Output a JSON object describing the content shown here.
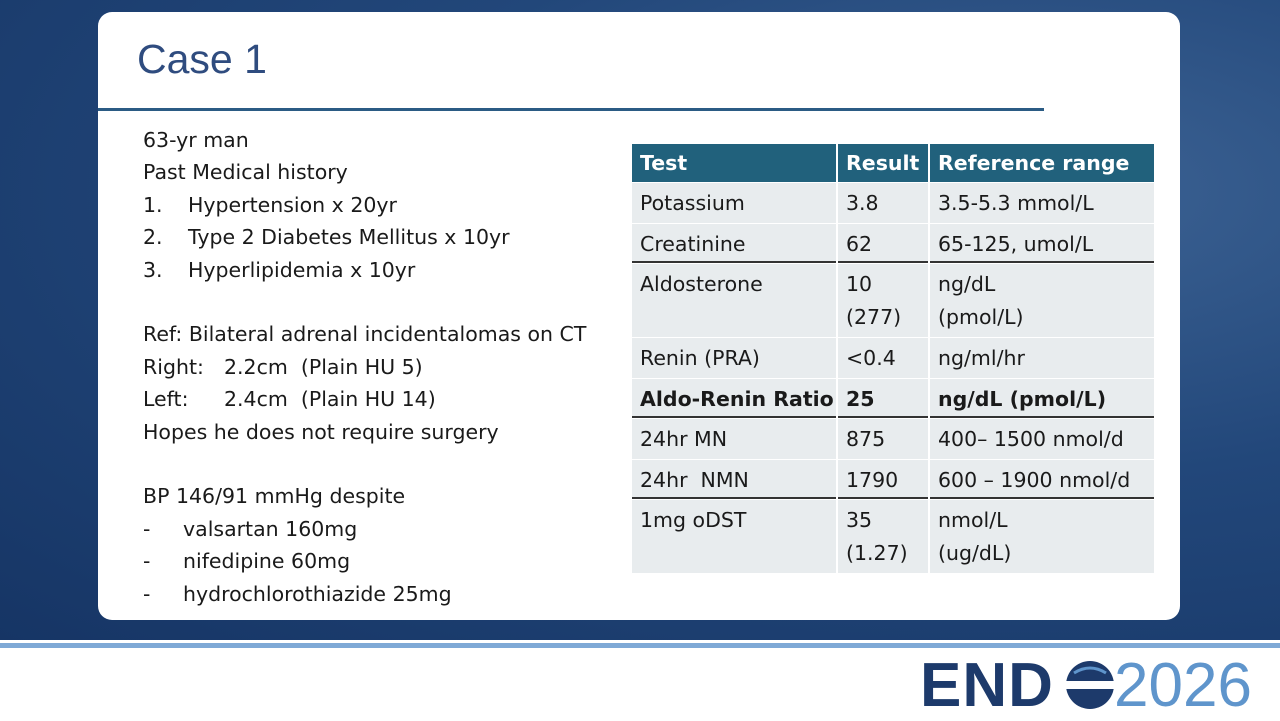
{
  "title": "Case 1",
  "patient": {
    "intro": [
      "63-yr man",
      "Past Medical history"
    ],
    "history": [
      {
        "marker": "1.",
        "text": "Hypertension x 20yr"
      },
      {
        "marker": "2.",
        "text": "Type 2 Diabetes Mellitus x 10yr"
      },
      {
        "marker": "3.",
        "text": "Hyperlipidemia x 10yr"
      }
    ],
    "referral": "Ref: Bilateral adrenal incidentalomas on CT",
    "lesions": [
      {
        "side": "Right:",
        "text": "2.2cm  (Plain HU 5)"
      },
      {
        "side": "Left:",
        "text": "2.4cm  (Plain HU 14)"
      }
    ],
    "note": "Hopes he does not require surgery",
    "bp": "BP 146/91 mmHg despite",
    "meds": [
      {
        "marker": "-",
        "text": "valsartan 160mg"
      },
      {
        "marker": "-",
        "text": "nifedipine 60mg"
      },
      {
        "marker": "-",
        "text": "hydrochlorothiazide 25mg"
      }
    ]
  },
  "table": {
    "header": [
      "Test",
      "Result",
      "Reference range"
    ],
    "rows": [
      {
        "cells": [
          [
            "Potassium"
          ],
          [
            "3.8"
          ],
          [
            "3.5-5.3 mmol/L"
          ]
        ]
      },
      {
        "cells": [
          [
            "Creatinine"
          ],
          [
            "62"
          ],
          [
            "65-125, umol/L"
          ]
        ]
      },
      {
        "cells": [
          [
            "Aldosterone"
          ],
          [
            "10",
            "(277)"
          ],
          [
            "ng/dL",
            "(pmol/L)"
          ]
        ]
      },
      {
        "cells": [
          [
            "Renin (PRA)"
          ],
          [
            "<0.4"
          ],
          [
            "ng/ml/hr"
          ]
        ]
      },
      {
        "cells": [
          [
            "Aldo-Renin Ratio"
          ],
          [
            "25"
          ],
          [
            "ng/dL (pmol/L)"
          ]
        ],
        "bold": true
      },
      {
        "cells": [
          [
            "24hr MN"
          ],
          [
            "875"
          ],
          [
            "400– 1500 nmol/d"
          ]
        ]
      },
      {
        "cells": [
          [
            "24hr  NMN"
          ],
          [
            "1790"
          ],
          [
            "600 – 1900 nmol/d"
          ]
        ]
      },
      {
        "cells": [
          [
            "1mg oDST"
          ],
          [
            "35",
            "(1.27)"
          ],
          [
            "nmol/L",
            "(ug/dL)"
          ]
        ]
      }
    ]
  },
  "logo": {
    "brand": "END",
    "year": "2026"
  }
}
